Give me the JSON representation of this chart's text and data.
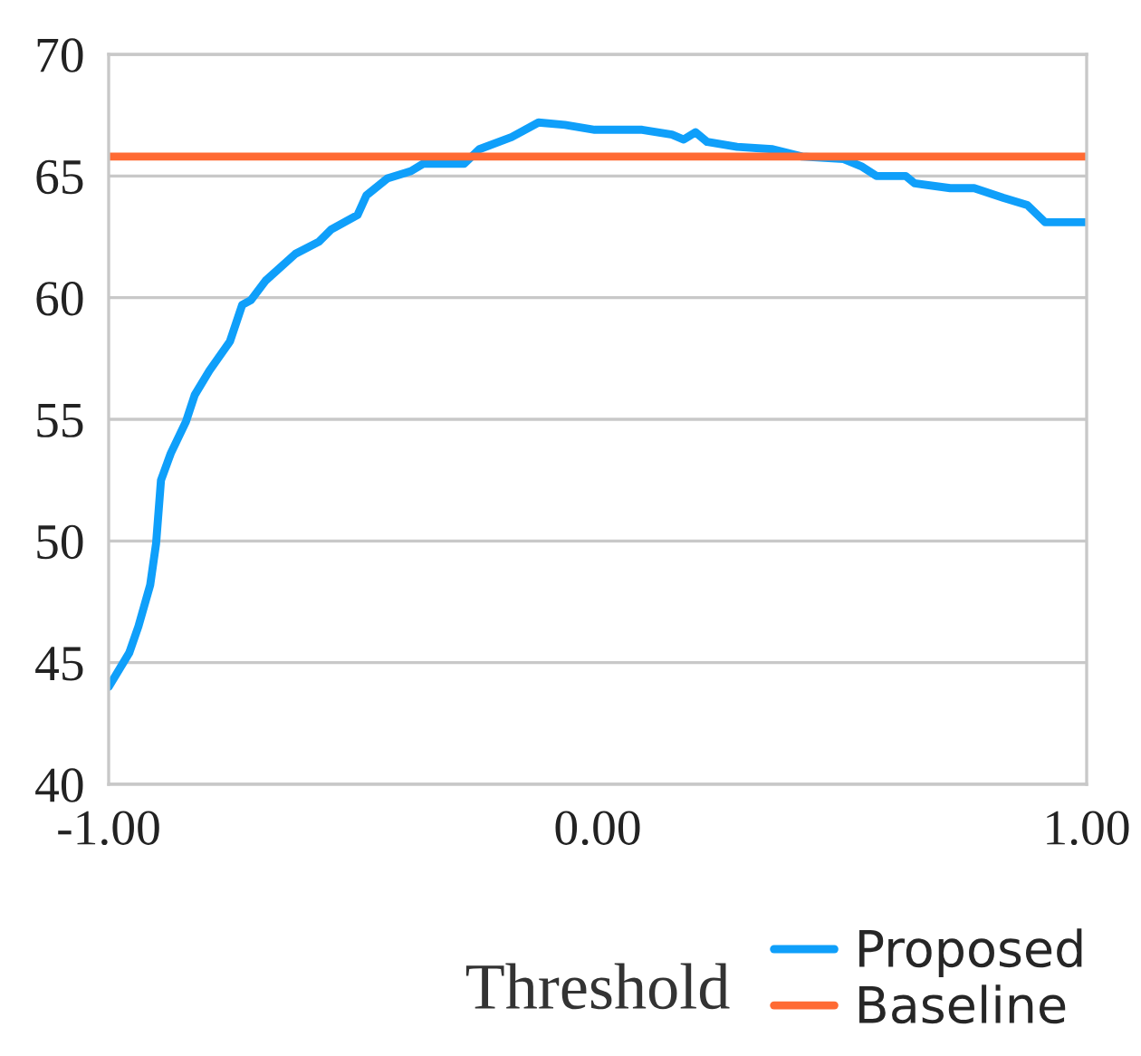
{
  "chart_data": {
    "type": "line",
    "xlabel": "Threshold",
    "xlim": [
      -1,
      1
    ],
    "xticks": [
      {
        "value": -1,
        "label": "-1.00"
      },
      {
        "value": 0,
        "label": "0.00"
      },
      {
        "value": 1,
        "label": "1.00"
      }
    ],
    "ylim": [
      40,
      70
    ],
    "yticks": [
      40,
      45,
      50,
      55,
      60,
      65,
      70
    ],
    "grid": "y",
    "legend": "bottom right",
    "marker": "none",
    "line_style": "solid",
    "series": [
      {
        "name": "Proposed",
        "color": "#0f9ffa",
        "x": [
          -1.0,
          -0.958,
          -0.939,
          -0.915,
          -0.903,
          -0.893,
          -0.873,
          -0.842,
          -0.824,
          -0.794,
          -0.752,
          -0.727,
          -0.709,
          -0.679,
          -0.618,
          -0.57,
          -0.545,
          -0.491,
          -0.473,
          -0.43,
          -0.382,
          -0.357,
          -0.273,
          -0.242,
          -0.176,
          -0.121,
          -0.067,
          -0.006,
          0.091,
          0.152,
          0.176,
          0.2,
          0.224,
          0.285,
          0.358,
          0.418,
          0.503,
          0.539,
          0.57,
          0.63,
          0.648,
          0.721,
          0.77,
          0.83,
          0.879,
          0.915,
          1.0
        ],
        "values": [
          44.0,
          45.4,
          46.5,
          48.2,
          49.9,
          52.5,
          53.6,
          54.9,
          56.0,
          57.0,
          58.2,
          59.7,
          59.9,
          60.7,
          61.8,
          62.3,
          62.8,
          63.4,
          64.2,
          64.9,
          65.2,
          65.5,
          65.5,
          66.1,
          66.6,
          67.2,
          67.1,
          66.9,
          66.9,
          66.7,
          66.5,
          66.8,
          66.4,
          66.2,
          66.1,
          65.8,
          65.7,
          65.4,
          65.0,
          65.0,
          64.7,
          64.5,
          64.5,
          64.1,
          63.8,
          63.1,
          63.1
        ]
      },
      {
        "name": "Baseline",
        "color": "#ff6a33",
        "x": [
          -1.0,
          1.0
        ],
        "values": [
          65.8,
          65.8
        ]
      }
    ]
  }
}
